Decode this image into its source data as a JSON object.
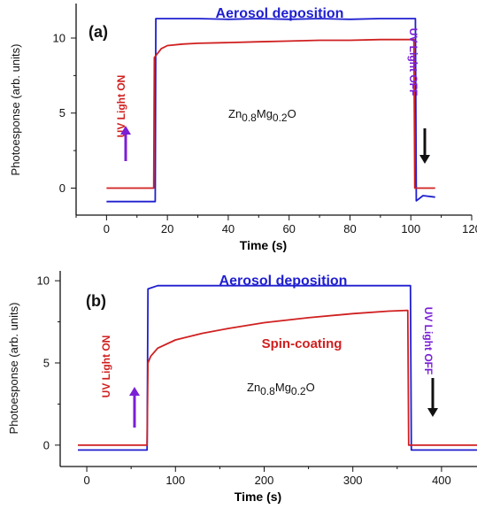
{
  "chart_data": [
    {
      "type": "line",
      "panel_label": "(a)",
      "xlabel": "Time (s)",
      "ylabel": "Photoesponse (arb. units)",
      "xlim": [
        -10,
        120
      ],
      "ylim": [
        -1.8,
        12.3
      ],
      "x_ticks": [
        0,
        20,
        40,
        60,
        80,
        100,
        120
      ],
      "y_ticks": [
        0,
        5,
        10
      ],
      "compound": {
        "base": "Zn",
        "sub1": "0.8",
        "mid": "Mg",
        "sub2": "0.2",
        "end": "O"
      },
      "legend_label": "Aerosol deposition",
      "annotation_on": "UV Light ON",
      "annotation_off": "UV Light OFF",
      "series": [
        {
          "name": "Aerosol deposition",
          "color": "#1f1fd0",
          "x": [
            0,
            16,
            16.2,
            20,
            30,
            40,
            50,
            60,
            70,
            80,
            90,
            101.5,
            101.8,
            104,
            108
          ],
          "y": [
            -0.9,
            -0.9,
            11.3,
            11.3,
            11.3,
            11.25,
            11.3,
            11.25,
            11.3,
            11.25,
            11.3,
            11.3,
            -0.85,
            -0.5,
            -0.6
          ]
        },
        {
          "color": "#d02020",
          "x": [
            0,
            15.5,
            15.7,
            18,
            20,
            25,
            30,
            40,
            50,
            60,
            70,
            80,
            90,
            100,
            101,
            101.3,
            108
          ],
          "y": [
            0,
            0,
            8.7,
            9.3,
            9.5,
            9.6,
            9.65,
            9.7,
            9.75,
            9.8,
            9.85,
            9.85,
            9.9,
            9.9,
            9.9,
            0,
            0
          ]
        }
      ]
    },
    {
      "type": "line",
      "panel_label": "(b)",
      "xlabel": "Time (s)",
      "ylabel": "Photoesponse (arb. units)",
      "xlim": [
        -30,
        440
      ],
      "ylim": [
        -1.3,
        10.6
      ],
      "x_ticks": [
        0,
        100,
        200,
        300,
        400
      ],
      "y_ticks": [
        0,
        5,
        10
      ],
      "compound": {
        "base": "Zn",
        "sub1": "0.8",
        "mid": "Mg",
        "sub2": "0.2",
        "end": "O"
      },
      "legend_label": "Aerosol deposition",
      "series_label": "Spin-coating",
      "annotation_on": "UV Light ON",
      "annotation_off": "UV Light OFF",
      "series": [
        {
          "name": "Aerosol deposition",
          "color": "#1f1fd0",
          "x": [
            -10,
            68,
            69,
            80,
            150,
            250,
            365,
            366,
            440
          ],
          "y": [
            -0.3,
            -0.3,
            9.5,
            9.7,
            9.7,
            9.7,
            9.7,
            -0.3,
            -0.3
          ]
        },
        {
          "name": "Spin-coating",
          "color": "#d02020",
          "x": [
            -10,
            68,
            69,
            72,
            80,
            100,
            130,
            160,
            200,
            250,
            300,
            340,
            362,
            363,
            440
          ],
          "y": [
            0,
            0,
            5.0,
            5.4,
            5.9,
            6.4,
            6.8,
            7.1,
            7.45,
            7.75,
            8.0,
            8.15,
            8.2,
            0,
            0
          ]
        }
      ]
    }
  ]
}
